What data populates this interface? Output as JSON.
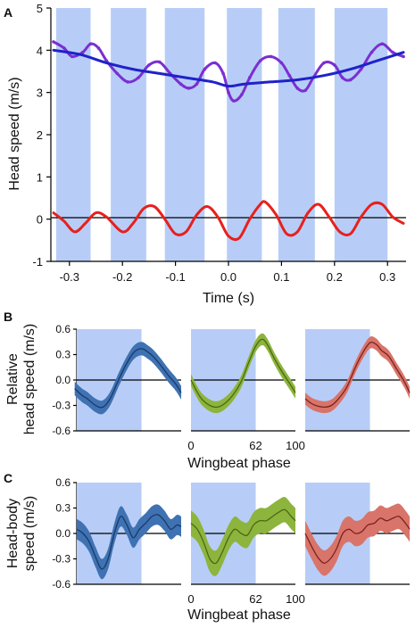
{
  "colors": {
    "stroke_phase": "#b7cdf7",
    "head": "#7b2fd1",
    "body": "#1f22c9",
    "relative": "#e8201c",
    "blue_band": "#3f72b3",
    "blue_line": "#1b3a66",
    "green_band": "#8db43d",
    "green_line": "#4a6a12",
    "red_band": "#d9746a",
    "red_line": "#7a2420"
  },
  "chart_data": [
    {
      "panel": "A",
      "type": "line",
      "xlabel": "Time (s)",
      "ylabel": "Head speed (m/s)",
      "xlim": [
        -0.335,
        0.335
      ],
      "ylim": [
        -1,
        5
      ],
      "xticks": [
        -0.3,
        -0.2,
        -0.1,
        0.0,
        0.1,
        0.2,
        0.3
      ],
      "xtick_labels": [
        "-0.3",
        "-0.2",
        "-0.1",
        "0.0",
        "0.1",
        "0.2",
        "0.3"
      ],
      "yticks": [
        -1,
        0,
        1,
        2,
        3,
        4,
        5
      ],
      "ytick_labels": [
        "-1",
        "0",
        "1",
        "2",
        "3",
        "4",
        "5"
      ],
      "shaded_intervals": [
        [
          -0.325,
          -0.26
        ],
        [
          -0.222,
          -0.155
        ],
        [
          -0.12,
          -0.045
        ],
        [
          -0.003,
          0.063
        ],
        [
          0.094,
          0.163
        ],
        [
          0.2,
          0.3
        ]
      ],
      "series": [
        {
          "role": "head",
          "x": [
            -0.33,
            -0.31,
            -0.295,
            -0.275,
            -0.26,
            -0.245,
            -0.23,
            -0.21,
            -0.19,
            -0.17,
            -0.15,
            -0.13,
            -0.11,
            -0.09,
            -0.075,
            -0.06,
            -0.045,
            -0.025,
            -0.01,
            0.0,
            0.01,
            0.025,
            0.04,
            0.06,
            0.08,
            0.1,
            0.115,
            0.13,
            0.145,
            0.16,
            0.18,
            0.2,
            0.215,
            0.23,
            0.25,
            0.27,
            0.29,
            0.31,
            0.33
          ],
          "y": [
            4.2,
            4.05,
            3.85,
            3.95,
            4.15,
            4.05,
            3.75,
            3.45,
            3.25,
            3.35,
            3.65,
            3.72,
            3.45,
            3.2,
            3.1,
            3.2,
            3.55,
            3.7,
            3.45,
            3.0,
            2.8,
            2.95,
            3.35,
            3.75,
            3.85,
            3.7,
            3.4,
            3.1,
            3.05,
            3.35,
            3.7,
            3.65,
            3.35,
            3.3,
            3.55,
            3.95,
            4.15,
            3.95,
            3.85
          ]
        },
        {
          "role": "body",
          "x": [
            -0.33,
            -0.28,
            -0.23,
            -0.18,
            -0.13,
            -0.08,
            -0.03,
            0.0,
            0.03,
            0.08,
            0.13,
            0.18,
            0.23,
            0.28,
            0.33
          ],
          "y": [
            4.0,
            3.9,
            3.7,
            3.55,
            3.45,
            3.35,
            3.25,
            3.15,
            3.2,
            3.25,
            3.3,
            3.4,
            3.55,
            3.75,
            3.95
          ]
        },
        {
          "role": "relative",
          "x": [
            -0.33,
            -0.31,
            -0.29,
            -0.27,
            -0.25,
            -0.23,
            -0.2,
            -0.18,
            -0.16,
            -0.14,
            -0.12,
            -0.1,
            -0.08,
            -0.06,
            -0.04,
            -0.02,
            0.0,
            0.02,
            0.04,
            0.06,
            0.07,
            0.09,
            0.11,
            0.13,
            0.15,
            0.17,
            0.19,
            0.21,
            0.23,
            0.25,
            0.27,
            0.29,
            0.31,
            0.33
          ],
          "y": [
            0.15,
            -0.05,
            -0.3,
            -0.1,
            0.15,
            0.05,
            -0.3,
            -0.1,
            0.25,
            0.3,
            0.0,
            -0.35,
            -0.3,
            0.1,
            0.3,
            0.05,
            -0.4,
            -0.45,
            0.0,
            0.35,
            0.4,
            0.1,
            -0.35,
            -0.3,
            0.15,
            0.35,
            0.05,
            -0.3,
            -0.35,
            0.05,
            0.35,
            0.35,
            0.05,
            -0.1
          ]
        }
      ]
    },
    {
      "panel": "B",
      "type": "area",
      "ylabel": "Relative head speed (m/s)",
      "xlabel": "Wingbeat phase",
      "ylim": [
        -0.6,
        0.6
      ],
      "yticks": [
        0.6,
        0.3,
        0.0,
        -0.3,
        -0.6
      ],
      "ytick_labels": [
        "0.6",
        "0.3",
        "0.0",
        "-0.3",
        "-0.6"
      ],
      "xticks": [
        0,
        62,
        100
      ],
      "xtick_labels": [
        "0",
        "62",
        "100"
      ],
      "shaded_interval": [
        0,
        62
      ],
      "subplots": [
        {
          "color": "blue",
          "x": [
            -2,
            5,
            10,
            18,
            25,
            32,
            40,
            48,
            55,
            62,
            68,
            73,
            80,
            88,
            95,
            100
          ],
          "y": [
            -0.1,
            -0.18,
            -0.22,
            -0.3,
            -0.32,
            -0.22,
            0.0,
            0.2,
            0.33,
            0.37,
            0.33,
            0.28,
            0.18,
            0.05,
            -0.05,
            -0.15
          ],
          "err": 0.08
        },
        {
          "color": "green",
          "x": [
            0,
            5,
            10,
            18,
            25,
            32,
            40,
            48,
            55,
            62,
            68,
            73,
            80,
            88,
            95,
            100
          ],
          "y": [
            0.0,
            -0.12,
            -0.22,
            -0.3,
            -0.32,
            -0.28,
            -0.18,
            -0.02,
            0.2,
            0.4,
            0.48,
            0.42,
            0.25,
            0.08,
            -0.05,
            -0.15
          ],
          "err": 0.07
        },
        {
          "color": "red",
          "x": [
            0,
            5,
            10,
            18,
            25,
            32,
            40,
            48,
            55,
            62,
            68,
            73,
            80,
            88,
            95,
            100
          ],
          "y": [
            -0.22,
            -0.27,
            -0.3,
            -0.32,
            -0.3,
            -0.22,
            -0.08,
            0.15,
            0.32,
            0.44,
            0.42,
            0.35,
            0.28,
            0.12,
            -0.02,
            -0.15
          ],
          "err": 0.07
        }
      ]
    },
    {
      "panel": "C",
      "type": "area",
      "ylabel": "Head-body speed (m/s)",
      "xlabel": "Wingbeat phase",
      "ylim": [
        -0.6,
        0.6
      ],
      "yticks": [
        0.6,
        0.3,
        0.0,
        -0.3,
        -0.6
      ],
      "ytick_labels": [
        "0.6",
        "0.3",
        "0.0",
        "-0.3",
        "-0.6"
      ],
      "xticks": [
        0,
        62,
        100
      ],
      "xtick_labels": [
        "0",
        "62",
        "100"
      ],
      "shaded_interval": [
        0,
        62
      ],
      "subplots": [
        {
          "color": "blue",
          "x": [
            0,
            6,
            12,
            18,
            24,
            30,
            36,
            42,
            48,
            54,
            60,
            66,
            72,
            78,
            84,
            90,
            96,
            100
          ],
          "y": [
            0.05,
            0.0,
            -0.1,
            -0.28,
            -0.42,
            -0.3,
            0.0,
            0.2,
            0.1,
            -0.05,
            0.05,
            0.12,
            0.2,
            0.22,
            0.15,
            0.05,
            0.1,
            0.08
          ],
          "err": 0.12
        },
        {
          "color": "green",
          "x": [
            0,
            6,
            12,
            18,
            24,
            30,
            36,
            42,
            48,
            54,
            60,
            66,
            72,
            78,
            84,
            90,
            96,
            100
          ],
          "y": [
            0.12,
            0.05,
            -0.1,
            -0.3,
            -0.35,
            -0.22,
            -0.05,
            0.05,
            0.0,
            -0.02,
            0.1,
            0.15,
            0.15,
            0.2,
            0.25,
            0.28,
            0.2,
            0.15
          ],
          "err": 0.15
        },
        {
          "color": "red",
          "x": [
            0,
            6,
            12,
            18,
            24,
            30,
            36,
            42,
            48,
            54,
            60,
            66,
            72,
            78,
            84,
            90,
            96,
            100
          ],
          "y": [
            0.0,
            -0.15,
            -0.28,
            -0.35,
            -0.3,
            -0.18,
            0.0,
            0.05,
            0.0,
            0.02,
            0.1,
            0.12,
            0.18,
            0.15,
            0.18,
            0.2,
            0.12,
            0.05
          ],
          "err": 0.15
        }
      ]
    }
  ]
}
